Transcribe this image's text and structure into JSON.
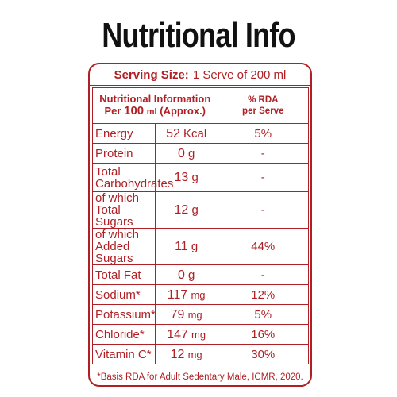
{
  "title": "Nutritional Info",
  "serving": {
    "label": "Serving Size:",
    "value": "1 Serve of 200 ml"
  },
  "header": {
    "info_line1": "Nutritional Information",
    "info_per": "Per",
    "info_amount": "100",
    "info_unit": "ml",
    "info_approx": "(Approx.)",
    "rda_line1": "% RDA",
    "rda_line2": "per Serve"
  },
  "rows": [
    {
      "name": "Energy",
      "value": "52",
      "unit": "Kcal",
      "rda": "5%"
    },
    {
      "name": "Protein",
      "value": "0",
      "unit": "g",
      "rda": "-"
    },
    {
      "name_line1": "Total",
      "name_line2": "Carbohydrates",
      "value": "13",
      "unit": "g",
      "rda": "-"
    },
    {
      "name_line1": "of which Total",
      "name_line2": "Sugars",
      "value": "12",
      "unit": "g",
      "rda": "-"
    },
    {
      "name_line1": "of which",
      "name_line2": "Added Sugars",
      "value": "11",
      "unit": "g",
      "rda": "44%"
    },
    {
      "name": "Total Fat",
      "value": "0",
      "unit": "g",
      "rda": "-"
    },
    {
      "name": "Sodium*",
      "value": "117",
      "unit": "mg",
      "rda": "12%"
    },
    {
      "name": "Potassium*",
      "value": "79",
      "unit": "mg",
      "rda": "5%"
    },
    {
      "name": "Chloride*",
      "value": "147",
      "unit": "mg",
      "rda": "16%"
    },
    {
      "name": "Vitamin C*",
      "value": "12",
      "unit": "mg",
      "rda": "30%"
    }
  ],
  "footnote": "*Basis RDA for Adult Sedentary Male, ICMR, 2020.",
  "colors": {
    "accent": "#b01f24",
    "title": "#111111"
  }
}
